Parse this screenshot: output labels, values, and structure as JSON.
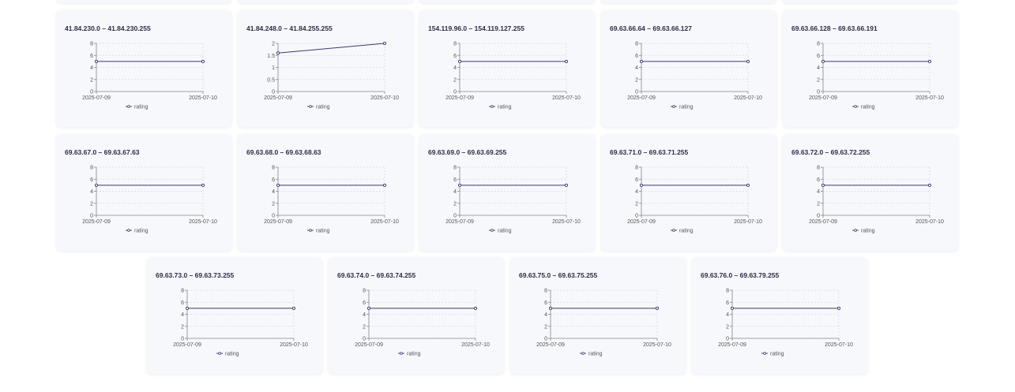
{
  "chart_data": [
    {
      "type": "line",
      "title": "41.84.230.0 – 41.84.230.255",
      "categories": [
        "2025-07-09",
        "2025-07-10"
      ],
      "series": [
        {
          "name": "rating",
          "values": [
            5,
            5
          ]
        }
      ],
      "ylim": [
        0,
        8
      ],
      "yticks": [
        "8",
        "6",
        "4",
        "2",
        "0"
      ],
      "grid": true,
      "legend": "bottom"
    },
    {
      "type": "line",
      "title": "41.84.248.0 – 41.84.255.255",
      "categories": [
        "2025-07-09",
        "2025-07-10"
      ],
      "series": [
        {
          "name": "rating",
          "values": [
            1.6,
            2
          ]
        }
      ],
      "ylim": [
        0,
        2
      ],
      "yticks": [
        "2",
        "1.5",
        "1",
        "0.5",
        "0"
      ],
      "grid": true,
      "legend": "bottom"
    },
    {
      "type": "line",
      "title": "154.119.96.0 – 154.119.127.255",
      "categories": [
        "2025-07-09",
        "2025-07-10"
      ],
      "series": [
        {
          "name": "rating",
          "values": [
            5,
            5
          ]
        }
      ],
      "ylim": [
        0,
        8
      ],
      "yticks": [
        "8",
        "6",
        "4",
        "2",
        "0"
      ],
      "grid": true,
      "legend": "bottom"
    },
    {
      "type": "line",
      "title": "69.63.66.64 – 69.63.66.127",
      "categories": [
        "2025-07-09",
        "2025-07-10"
      ],
      "series": [
        {
          "name": "rating",
          "values": [
            5,
            5
          ]
        }
      ],
      "ylim": [
        0,
        8
      ],
      "yticks": [
        "8",
        "6",
        "4",
        "2",
        "0"
      ],
      "grid": true,
      "legend": "bottom"
    },
    {
      "type": "line",
      "title": "69.63.66.128 – 69.63.66.191",
      "categories": [
        "2025-07-09",
        "2025-07-10"
      ],
      "series": [
        {
          "name": "rating",
          "values": [
            5,
            5
          ]
        }
      ],
      "ylim": [
        0,
        8
      ],
      "yticks": [
        "8",
        "6",
        "4",
        "2",
        "0"
      ],
      "grid": true,
      "legend": "bottom"
    },
    {
      "type": "line",
      "title": "69.63.67.0 – 69.63.67.63",
      "categories": [
        "2025-07-09",
        "2025-07-10"
      ],
      "series": [
        {
          "name": "rating",
          "values": [
            5,
            5
          ]
        }
      ],
      "ylim": [
        0,
        8
      ],
      "yticks": [
        "8",
        "6",
        "4",
        "2",
        "0"
      ],
      "grid": true,
      "legend": "bottom"
    },
    {
      "type": "line",
      "title": "69.63.68.0 – 69.63.68.63",
      "categories": [
        "2025-07-09",
        "2025-07-10"
      ],
      "series": [
        {
          "name": "rating",
          "values": [
            5,
            5
          ]
        }
      ],
      "ylim": [
        0,
        8
      ],
      "yticks": [
        "8",
        "6",
        "4",
        "2",
        "0"
      ],
      "grid": true,
      "legend": "bottom"
    },
    {
      "type": "line",
      "title": "69.63.69.0 – 69.63.69.255",
      "categories": [
        "2025-07-09",
        "2025-07-10"
      ],
      "series": [
        {
          "name": "rating",
          "values": [
            5,
            5
          ]
        }
      ],
      "ylim": [
        0,
        8
      ],
      "yticks": [
        "8",
        "6",
        "4",
        "2",
        "0"
      ],
      "grid": true,
      "legend": "bottom"
    },
    {
      "type": "line",
      "title": "69.63.71.0 – 69.63.71.255",
      "categories": [
        "2025-07-09",
        "2025-07-10"
      ],
      "series": [
        {
          "name": "rating",
          "values": [
            5,
            5
          ]
        }
      ],
      "ylim": [
        0,
        8
      ],
      "yticks": [
        "8",
        "6",
        "4",
        "2",
        "0"
      ],
      "grid": true,
      "legend": "bottom"
    },
    {
      "type": "line",
      "title": "69.63.72.0 – 69.63.72.255",
      "categories": [
        "2025-07-09",
        "2025-07-10"
      ],
      "series": [
        {
          "name": "rating",
          "values": [
            5,
            5
          ]
        }
      ],
      "ylim": [
        0,
        8
      ],
      "yticks": [
        "8",
        "6",
        "4",
        "2",
        "0"
      ],
      "grid": true,
      "legend": "bottom"
    },
    {
      "type": "line",
      "title": "69.63.73.0 – 69.63.73.255",
      "categories": [
        "2025-07-09",
        "2025-07-10"
      ],
      "series": [
        {
          "name": "rating",
          "values": [
            5,
            5
          ]
        }
      ],
      "ylim": [
        0,
        8
      ],
      "yticks": [
        "8",
        "6",
        "4",
        "2",
        "0"
      ],
      "grid": true,
      "legend": "bottom"
    },
    {
      "type": "line",
      "title": "69.63.74.0 – 69.63.74.255",
      "categories": [
        "2025-07-09",
        "2025-07-10"
      ],
      "series": [
        {
          "name": "rating",
          "values": [
            5,
            5
          ]
        }
      ],
      "ylim": [
        0,
        8
      ],
      "yticks": [
        "8",
        "6",
        "4",
        "2",
        "0"
      ],
      "grid": true,
      "legend": "bottom"
    },
    {
      "type": "line",
      "title": "69.63.75.0 – 69.63.75.255",
      "categories": [
        "2025-07-09",
        "2025-07-10"
      ],
      "series": [
        {
          "name": "rating",
          "values": [
            5,
            5
          ]
        }
      ],
      "ylim": [
        0,
        8
      ],
      "yticks": [
        "8",
        "6",
        "4",
        "2",
        "0"
      ],
      "grid": true,
      "legend": "bottom"
    },
    {
      "type": "line",
      "title": "69.63.76.0 – 69.63.79.255",
      "categories": [
        "2025-07-09",
        "2025-07-10"
      ],
      "series": [
        {
          "name": "rating",
          "values": [
            5,
            5
          ]
        }
      ],
      "ylim": [
        0,
        8
      ],
      "yticks": [
        "8",
        "6",
        "4",
        "2",
        "0"
      ],
      "grid": true,
      "legend": "bottom"
    }
  ],
  "colors": {
    "line": "#3a3a6a",
    "grid": "#d6d9e4",
    "axis": "#888888",
    "card_bg": "#f7f8fc"
  }
}
